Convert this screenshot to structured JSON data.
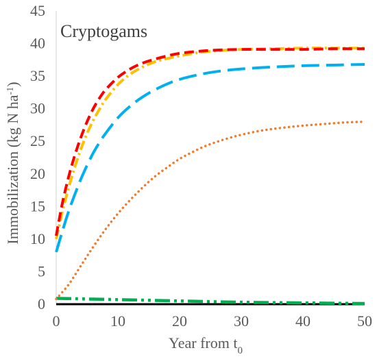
{
  "chart_data": {
    "type": "line",
    "title": "",
    "annotation": "Cryptogams",
    "xlabel": "Year from t",
    "xlabel_subscript": "0",
    "ylabel_main": "Immobilization (kg N ha",
    "ylabel_sup": "-1",
    "ylabel_close": ")",
    "xlim": [
      0,
      50
    ],
    "ylim": [
      0,
      45
    ],
    "xticks": [
      0,
      10,
      20,
      30,
      40,
      50
    ],
    "yticks": [
      0,
      5,
      10,
      15,
      20,
      25,
      30,
      35,
      40,
      45
    ],
    "grid": false,
    "legend": "none",
    "series": [
      {
        "color": "#FF0000",
        "style": "dash",
        "x": [
          0,
          1,
          2,
          3,
          4,
          5,
          6,
          7,
          8,
          10,
          12,
          14,
          16,
          18,
          20,
          23,
          26,
          30,
          35,
          40,
          45,
          50
        ],
        "y": [
          10.5,
          15.5,
          19.5,
          22.8,
          25.6,
          28.0,
          30.0,
          31.6,
          32.9,
          34.8,
          36.1,
          37.0,
          37.6,
          38.1,
          38.5,
          38.8,
          39.0,
          39.1,
          39.1,
          39.1,
          39.2,
          39.2
        ]
      },
      {
        "color": "#FFC000",
        "style": "dashdot",
        "x": [
          0,
          1,
          2,
          3,
          4,
          5,
          6,
          7,
          8,
          10,
          12,
          14,
          16,
          18,
          20,
          23,
          26,
          30,
          35,
          40,
          45,
          50
        ],
        "y": [
          10.0,
          14.2,
          17.8,
          21.0,
          23.8,
          26.2,
          28.2,
          29.9,
          31.4,
          33.7,
          35.3,
          36.4,
          37.2,
          37.7,
          38.1,
          38.6,
          38.9,
          39.1,
          39.2,
          39.3,
          39.3,
          39.3
        ]
      },
      {
        "color": "#00B0F0",
        "style": "longdash",
        "x": [
          0,
          1,
          2,
          3,
          4,
          5,
          6,
          7,
          8,
          10,
          12,
          14,
          16,
          18,
          20,
          23,
          26,
          30,
          35,
          40,
          45,
          50
        ],
        "y": [
          8.0,
          11.2,
          14.2,
          16.8,
          19.2,
          21.3,
          23.2,
          24.8,
          26.2,
          28.6,
          30.4,
          31.8,
          32.9,
          33.8,
          34.5,
          35.2,
          35.7,
          36.1,
          36.4,
          36.6,
          36.7,
          36.8
        ]
      },
      {
        "color": "#ED7D31",
        "style": "dot",
        "x": [
          0,
          2,
          4,
          6,
          8,
          10,
          12,
          14,
          16,
          18,
          20,
          22,
          24,
          26,
          28,
          30,
          33,
          36,
          40,
          44,
          47,
          50
        ],
        "y": [
          0.8,
          3.0,
          5.9,
          8.8,
          11.5,
          13.9,
          16.0,
          17.9,
          19.6,
          21.0,
          22.3,
          23.3,
          24.2,
          24.9,
          25.5,
          26.0,
          26.6,
          27.0,
          27.4,
          27.7,
          27.9,
          28.0
        ]
      },
      {
        "color": "#00B050",
        "style": "dashdotdot",
        "x": [
          0,
          10,
          20,
          30,
          40,
          50
        ],
        "y": [
          0.9,
          0.7,
          0.5,
          0.3,
          0.2,
          0.1
        ]
      },
      {
        "color": "#000000",
        "style": "solid",
        "x": [
          0,
          50
        ],
        "y": [
          0.0,
          0.0
        ]
      }
    ]
  }
}
